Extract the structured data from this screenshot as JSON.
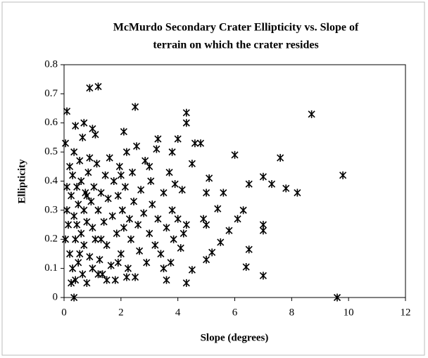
{
  "chart_data": {
    "type": "scatter",
    "title": [
      "McMurdo Secondary Crater Ellipticity vs. Slope of",
      "terrain on which the crater resides"
    ],
    "x_label": "Slope (degrees)",
    "y_label": "Ellipticity",
    "xlim": [
      0,
      12
    ],
    "xticks": [
      0,
      2,
      4,
      6,
      8,
      10,
      12
    ],
    "ylim": [
      0,
      0.8
    ],
    "yticks": [
      0,
      0.1,
      0.2,
      0.3,
      0.4,
      0.5,
      0.6,
      0.7,
      0.8
    ],
    "color": "#000000",
    "marker": "asterisk",
    "x": [
      0.1,
      0.9,
      1.2,
      2.5,
      4.3,
      4.3,
      8.7,
      9.8,
      9.6,
      0.35,
      7,
      6.4,
      6.5,
      7,
      7,
      6.3,
      6.1,
      5.8,
      5.5,
      5.4,
      5.2,
      5,
      5,
      4.9,
      5,
      5.1,
      5.6,
      6,
      6.5,
      7,
      7.3,
      7.6,
      7.8,
      8.2,
      4.5,
      4.6,
      4.8,
      4.3,
      4.5,
      3.6,
      3.8,
      4,
      3.3,
      2.1,
      1.0,
      1.1,
      0.4,
      0.7,
      0.05,
      0.1,
      0.15,
      0.2,
      0.2,
      0.25,
      0.3,
      0.3,
      0.35,
      0.4,
      0.4,
      0.45,
      0.5,
      0.5,
      0.55,
      0.6,
      0.6,
      0.65,
      0.7,
      0.7,
      0.75,
      0.8,
      0.8,
      0.85,
      0.9,
      0.95,
      1.0,
      1.0,
      1.05,
      1.1,
      1.15,
      1.2,
      1.25,
      1.3,
      1.35,
      1.4,
      1.45,
      1.5,
      1.55,
      1.6,
      1.65,
      1.7,
      1.75,
      1.8,
      1.85,
      1.9,
      1.95,
      2.0,
      2.05,
      2.1,
      2.15,
      2.2,
      2.25,
      2.3,
      2.35,
      2.4,
      2.45,
      2.5,
      2.55,
      2.6,
      2.65,
      2.7,
      2.8,
      2.85,
      2.9,
      3.0,
      3.05,
      3.1,
      3.2,
      3.25,
      3.3,
      3.4,
      3.5,
      3.6,
      3.7,
      3.75,
      3.8,
      3.85,
      3.9,
      4.0,
      4.1,
      4.15,
      4.2,
      4.3,
      0.05,
      0.1,
      0.25,
      0.35,
      0.55,
      0.65,
      0.9,
      1.2,
      1.5,
      1.9,
      2.2,
      3.0,
      3.5,
      2.0,
      1.3,
      0.8,
      0.45
    ],
    "y": [
      0.64,
      0.72,
      0.725,
      0.655,
      0.635,
      0.6,
      0.63,
      0.42,
      0,
      0,
      0.075,
      0.105,
      0.165,
      0.23,
      0.25,
      0.3,
      0.27,
      0.23,
      0.19,
      0.305,
      0.155,
      0.13,
      0.25,
      0.27,
      0.36,
      0.41,
      0.36,
      0.49,
      0.39,
      0.415,
      0.39,
      0.48,
      0.375,
      0.36,
      0.46,
      0.53,
      0.53,
      0.05,
      0.095,
      0.06,
      0.5,
      0.545,
      0.545,
      0.57,
      0.58,
      0.56,
      0.59,
      0.6,
      0.53,
      0.3,
      0.25,
      0.45,
      0.15,
      0.35,
      0.42,
      0.1,
      0.28,
      0.2,
      0.06,
      0.38,
      0.32,
      0.12,
      0.47,
      0.22,
      0.4,
      0.08,
      0.3,
      0.18,
      0.36,
      0.05,
      0.26,
      0.43,
      0.14,
      0.33,
      0.1,
      0.24,
      0.38,
      0.2,
      0.46,
      0.3,
      0.13,
      0.36,
      0.08,
      0.26,
      0.42,
      0.18,
      0.34,
      0.48,
      0.11,
      0.28,
      0.4,
      0.06,
      0.22,
      0.35,
      0.45,
      0.15,
      0.3,
      0.24,
      0.38,
      0.5,
      0.1,
      0.27,
      0.2,
      0.43,
      0.33,
      0.07,
      0.52,
      0.25,
      0.16,
      0.37,
      0.29,
      0.47,
      0.12,
      0.22,
      0.4,
      0.32,
      0.18,
      0.51,
      0.27,
      0.15,
      0.36,
      0.24,
      0.43,
      0.12,
      0.3,
      0.2,
      0.39,
      0.27,
      0.17,
      0.37,
      0.22,
      0.25,
      0.2,
      0.38,
      0.05,
      0.5,
      0.15,
      0.55,
      0.48,
      0.08,
      0.06,
      0.12,
      0.07,
      0.45,
      0.1,
      0.42,
      0.2,
      0.35,
      0.25
    ]
  }
}
